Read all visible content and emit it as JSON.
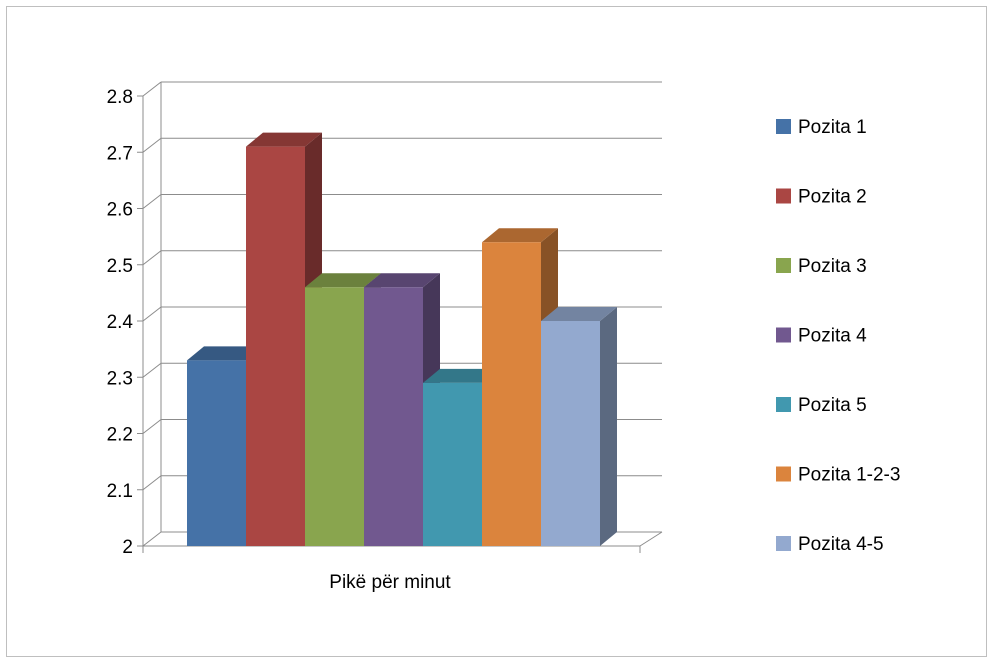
{
  "chart_data": {
    "type": "bar",
    "style": "3d-clustered-column",
    "categories": [
      "Pikë për minut"
    ],
    "series": [
      {
        "name": "Pozita 1",
        "values": [
          2.33
        ],
        "color": "#4572A7"
      },
      {
        "name": "Pozita 2",
        "values": [
          2.71
        ],
        "color": "#AA4643"
      },
      {
        "name": "Pozita 3",
        "values": [
          2.46
        ],
        "color": "#89A54E"
      },
      {
        "name": "Pozita 4",
        "values": [
          2.46
        ],
        "color": "#71588F"
      },
      {
        "name": "Pozita 5",
        "values": [
          2.29
        ],
        "color": "#4198AF"
      },
      {
        "name": "Pozita 1-2-3",
        "values": [
          2.54
        ],
        "color": "#DB843D"
      },
      {
        "name": "Pozita 4-5",
        "values": [
          2.4
        ],
        "color": "#93A9CF"
      }
    ],
    "ylim": [
      2,
      2.8
    ],
    "yticks": [
      "2",
      "2.1",
      "2.2",
      "2.3",
      "2.4",
      "2.5",
      "2.6",
      "2.7",
      "2.8"
    ],
    "grid": true,
    "legend": "right"
  }
}
